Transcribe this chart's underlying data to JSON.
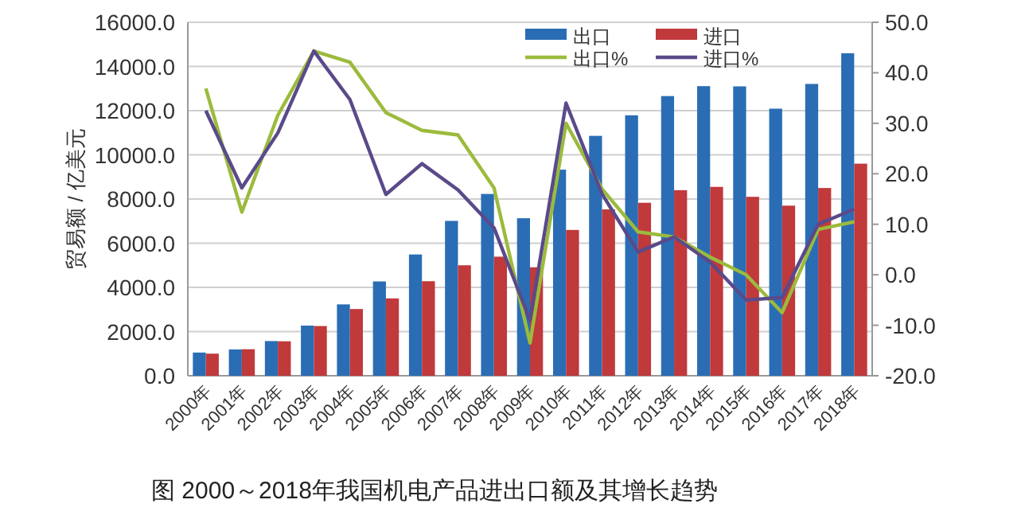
{
  "chart_data": {
    "type": "bar",
    "title": "图  2000～2018年我国机电产品进出口额及其增长趋势",
    "ylabel": "贸易额 / 亿美元",
    "categories": [
      "2000年",
      "2001年",
      "2002年",
      "2003年",
      "2004年",
      "2005年",
      "2006年",
      "2007年",
      "2008年",
      "2009年",
      "2010年",
      "2011年",
      "2012年",
      "2013年",
      "2014年",
      "2015年",
      "2016年",
      "2017年",
      "2018年"
    ],
    "series": [
      {
        "name": "出口",
        "color": "#2a6db5",
        "values": [
          1050,
          1190,
          1570,
          2270,
          3230,
          4270,
          5490,
          7010,
          8230,
          7130,
          9330,
          10860,
          11790,
          12660,
          13110,
          13100,
          12090,
          13210,
          14600
        ]
      },
      {
        "name": "进口",
        "color": "#c0393b",
        "values": [
          1000,
          1200,
          1560,
          2250,
          3020,
          3500,
          4280,
          5000,
          5390,
          4910,
          6600,
          7530,
          7830,
          8400,
          8550,
          8100,
          7700,
          8500,
          9600
        ]
      },
      {
        "name": "出口%",
        "type": "line",
        "axis": "y2",
        "color": "#9bbb3c",
        "values": [
          36.9,
          12.4,
          31.6,
          44.3,
          42.1,
          32.1,
          28.6,
          27.7,
          17.2,
          -13.5,
          30,
          17,
          8.5,
          7.5,
          3.5,
          0,
          -7.5,
          9,
          10.5
        ]
      },
      {
        "name": "进口%",
        "type": "line",
        "axis": "y2",
        "color": "#5a4a8a",
        "values": [
          32.5,
          17.2,
          28.1,
          44.3,
          34.7,
          15.9,
          22,
          16.8,
          9.3,
          -9,
          34,
          16,
          4.5,
          7.5,
          2.5,
          -5,
          -4.5,
          10,
          13
        ]
      }
    ],
    "ylim": [
      0,
      16000
    ],
    "yticks": [
      {
        "value": 0,
        "label": "0.0"
      },
      {
        "value": 2000,
        "label": "2000.0"
      },
      {
        "value": 4000,
        "label": "4000.0"
      },
      {
        "value": 6000,
        "label": "6000.0"
      },
      {
        "value": 8000,
        "label": "8000.0"
      },
      {
        "value": 10000,
        "label": "10000.0"
      },
      {
        "value": 12000,
        "label": "12000.0"
      },
      {
        "value": 14000,
        "label": "14000.0"
      },
      {
        "value": 16000,
        "label": "16000.0"
      }
    ],
    "y2lim": [
      -20,
      50
    ],
    "y2ticks": [
      {
        "value": -20,
        "label": "-20.0"
      },
      {
        "value": -10,
        "label": "-10.0"
      },
      {
        "value": 0,
        "label": "0.0"
      },
      {
        "value": 10,
        "label": "10.0"
      },
      {
        "value": 20,
        "label": "20.0"
      },
      {
        "value": 30,
        "label": "30.0"
      },
      {
        "value": 40,
        "label": "40.0"
      },
      {
        "value": 50,
        "label": "50.0"
      }
    ],
    "grid": "y",
    "legend": "top right"
  }
}
